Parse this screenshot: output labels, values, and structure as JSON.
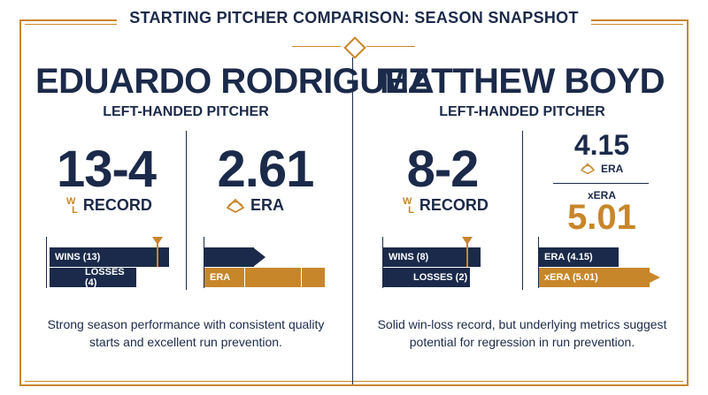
{
  "title": "STARTING PITCHER COMPARISON: SEASON SNAPSHOT",
  "colors": {
    "navy": "#1b2a4a",
    "gold": "#c8862a"
  },
  "left": {
    "name": "EDUARDO RODRIGUEZ",
    "hand": "LEFT-HANDED PITCHER",
    "record": "13-4",
    "record_label": "RECORD",
    "era": "2.61",
    "era_label": "ERA",
    "wins_label": "WINS (13)",
    "losses_label": "LOSSES (4)",
    "era_bar_label": "ERA",
    "description": "Strong season performance with consistent quality starts and excellent run prevention."
  },
  "right": {
    "name": "MATTHEW BOYD",
    "hand": "LEFT-HANDED PITCHER",
    "record": "8-2",
    "record_label": "RECORD",
    "era": "4.15",
    "era_label": "ERA",
    "xera_label": "xERA",
    "xera": "5.01",
    "wins_label": "WINS (8)",
    "losses_label": "LOSSES (2)",
    "era_bar_label": "ERA (4.15)",
    "xera_bar_label": "xERA (5.01)",
    "description": "Solid win-loss record, but underlying metrics suggest potential for regression in run prevention."
  }
}
